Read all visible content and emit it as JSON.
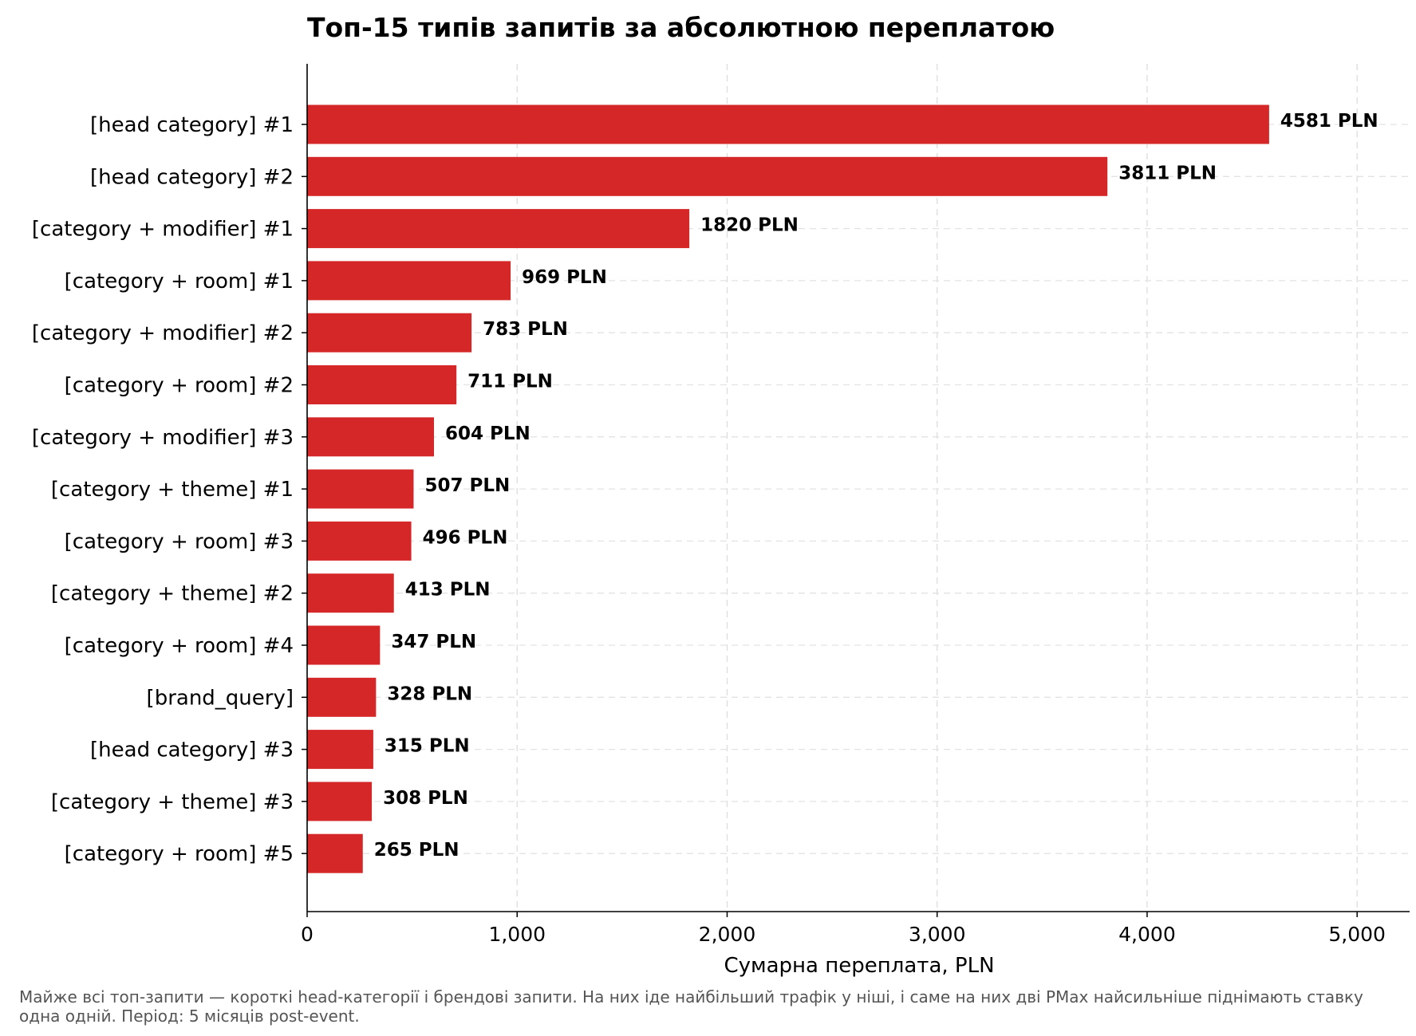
{
  "chart_data": {
    "type": "bar",
    "orientation": "horizontal",
    "title": "Топ-15 типів запитів за абсолютною переплатою",
    "xlabel": "Сумарна переплата, PLN",
    "ylabel": "",
    "xlim": [
      0,
      5250
    ],
    "xticks": [
      0,
      1000,
      2000,
      3000,
      4000,
      5000
    ],
    "xtick_labels": [
      "0",
      "1,000",
      "2,000",
      "3,000",
      "4,000",
      "5,000"
    ],
    "grid": true,
    "bar_color": "#d62728",
    "value_suffix": " PLN",
    "categories": [
      "[head category] #1",
      "[head category] #2",
      "[category + modifier] #1",
      "[category + room] #1",
      "[category + modifier] #2",
      "[category + room] #2",
      "[category + modifier] #3",
      "[category + theme] #1",
      "[category + room] #3",
      "[category + theme] #2",
      "[category + room] #4",
      "[brand_query]",
      "[head category] #3",
      "[category + theme] #3",
      "[category + room] #5"
    ],
    "values": [
      4581,
      3811,
      1820,
      969,
      783,
      711,
      604,
      507,
      496,
      413,
      347,
      328,
      315,
      308,
      265
    ]
  },
  "footnote": "Майже всі топ-запити — короткі head-категорії і брендові запити. На них іде найбільший трафік у ніші, і саме на них дві PMax найсильніше піднімають ставку одна одній. Період: 5 місяців post-event."
}
